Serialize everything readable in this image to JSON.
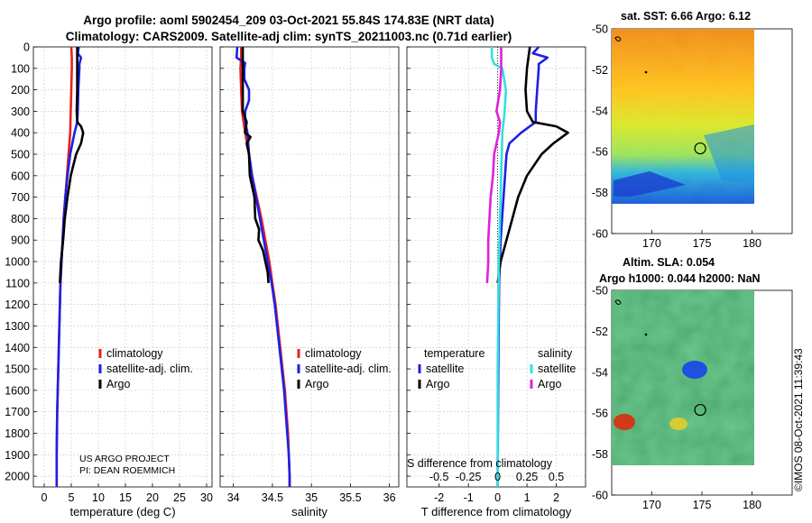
{
  "titles": {
    "line1": "Argo profile: aoml 5902454_209 03-Oct-2021 55.84S 174.83E (NRT data)",
    "line2": "Climatology: CARS2009. Satellite-adj clim: synTS_20211003.nc (0.71d earlier)"
  },
  "credit": "©IMOS 08-Oct-2021 11:39:43",
  "colors": {
    "climatology": "#e8231e",
    "satellite": "#1f1fe6",
    "argo": "#000000",
    "sat_salinity": "#33e0e0",
    "argo_salinity": "#e020e0"
  },
  "chart_data": [
    {
      "type": "line",
      "name": "temperature-profile",
      "xlabel": "temperature (deg C)",
      "ylabel": "",
      "xlim": [
        -2,
        31
      ],
      "ylim": [
        2050,
        0
      ],
      "xticks": [
        "0",
        "5",
        "10",
        "15",
        "20",
        "25",
        "30"
      ],
      "yticks": [
        "0",
        "100",
        "200",
        "300",
        "400",
        "500",
        "600",
        "700",
        "800",
        "900",
        "1000",
        "1100",
        "1200",
        "1300",
        "1400",
        "1500",
        "1600",
        "1700",
        "1800",
        "1900",
        "2000"
      ],
      "legend": [
        "climatology",
        "satellite-adj. clim.",
        "Argo"
      ],
      "legend_position": "lower-right",
      "annotation": [
        "US ARGO PROJECT",
        "PI: DEAN ROEMMICH"
      ],
      "series": [
        {
          "name": "climatology",
          "color": "#e8231e",
          "points": [
            [
              5,
              0
            ],
            [
              5.1,
              50
            ],
            [
              5.1,
              100
            ],
            [
              5,
              200
            ],
            [
              4.9,
              300
            ],
            [
              4.8,
              400
            ],
            [
              4.5,
              500
            ],
            [
              4.2,
              600
            ],
            [
              3.9,
              700
            ],
            [
              3.6,
              800
            ],
            [
              3.4,
              900
            ],
            [
              3.2,
              1000
            ],
            [
              3.0,
              1100
            ],
            [
              2.9,
              1200
            ],
            [
              2.8,
              1300
            ],
            [
              2.7,
              1400
            ],
            [
              2.6,
              1500
            ],
            [
              2.5,
              1600
            ],
            [
              2.4,
              1700
            ],
            [
              2.35,
              1800
            ],
            [
              2.3,
              1900
            ],
            [
              2.3,
              2000
            ],
            [
              2.3,
              2050
            ]
          ]
        },
        {
          "name": "satellite-adj. clim.",
          "color": "#1f1fe6",
          "points": [
            [
              6.4,
              0
            ],
            [
              6.2,
              30
            ],
            [
              6.8,
              50
            ],
            [
              6.5,
              80
            ],
            [
              6.5,
              100
            ],
            [
              6.3,
              200
            ],
            [
              6.2,
              300
            ],
            [
              6.1,
              350
            ],
            [
              5.6,
              400
            ],
            [
              4.8,
              500
            ],
            [
              4.3,
              600
            ],
            [
              3.9,
              700
            ],
            [
              3.6,
              800
            ],
            [
              3.4,
              900
            ],
            [
              3.2,
              1000
            ],
            [
              3.0,
              1100
            ],
            [
              2.9,
              1200
            ],
            [
              2.8,
              1300
            ],
            [
              2.7,
              1400
            ],
            [
              2.6,
              1500
            ],
            [
              2.5,
              1600
            ],
            [
              2.4,
              1700
            ],
            [
              2.35,
              1800
            ],
            [
              2.3,
              1900
            ],
            [
              2.3,
              2000
            ],
            [
              2.3,
              2050
            ]
          ]
        },
        {
          "name": "Argo",
          "color": "#000000",
          "points": [
            [
              6.1,
              0
            ],
            [
              6.1,
              50
            ],
            [
              6.1,
              100
            ],
            [
              6.1,
              200
            ],
            [
              6.0,
              300
            ],
            [
              6.1,
              350
            ],
            [
              6.8,
              370
            ],
            [
              7.2,
              400
            ],
            [
              6.8,
              450
            ],
            [
              5.9,
              500
            ],
            [
              4.9,
              600
            ],
            [
              4.3,
              700
            ],
            [
              3.8,
              800
            ],
            [
              3.5,
              900
            ],
            [
              3.1,
              1000
            ],
            [
              2.9,
              1100
            ]
          ]
        }
      ]
    },
    {
      "type": "line",
      "name": "salinity-profile",
      "xlabel": "salinity",
      "xlim": [
        33.83,
        36.12
      ],
      "ylim": [
        2050,
        0
      ],
      "xticks": [
        "34",
        "34.5",
        "35",
        "35.5",
        "36"
      ],
      "legend": [
        "climatology",
        "satellite-adj. clim.",
        "Argo"
      ],
      "legend_position": "lower-right",
      "series": [
        {
          "name": "climatology",
          "color": "#e8231e",
          "points": [
            [
              34.1,
              0
            ],
            [
              34.1,
              50
            ],
            [
              34.09,
              100
            ],
            [
              34.1,
              200
            ],
            [
              34.11,
              300
            ],
            [
              34.15,
              400
            ],
            [
              34.2,
              500
            ],
            [
              34.24,
              600
            ],
            [
              34.3,
              700
            ],
            [
              34.36,
              800
            ],
            [
              34.41,
              900
            ],
            [
              34.46,
              1000
            ],
            [
              34.5,
              1100
            ],
            [
              34.54,
              1200
            ],
            [
              34.57,
              1300
            ],
            [
              34.6,
              1400
            ],
            [
              34.63,
              1500
            ],
            [
              34.66,
              1600
            ],
            [
              34.68,
              1700
            ],
            [
              34.7,
              1800
            ],
            [
              34.71,
              1900
            ],
            [
              34.72,
              2000
            ],
            [
              34.72,
              2050
            ]
          ]
        },
        {
          "name": "satellite-adj. clim.",
          "color": "#1f1fe6",
          "points": [
            [
              34.05,
              0
            ],
            [
              34.04,
              50
            ],
            [
              34.15,
              75
            ],
            [
              34.14,
              100
            ],
            [
              34.14,
              150
            ],
            [
              34.2,
              200
            ],
            [
              34.2,
              250
            ],
            [
              34.15,
              300
            ],
            [
              34.15,
              350
            ],
            [
              34.18,
              400
            ],
            [
              34.2,
              500
            ],
            [
              34.24,
              600
            ],
            [
              34.29,
              700
            ],
            [
              34.34,
              800
            ],
            [
              34.39,
              900
            ],
            [
              34.44,
              1000
            ],
            [
              34.49,
              1100
            ],
            [
              34.53,
              1200
            ],
            [
              34.56,
              1300
            ],
            [
              34.59,
              1400
            ],
            [
              34.62,
              1500
            ],
            [
              34.65,
              1600
            ],
            [
              34.67,
              1700
            ],
            [
              34.69,
              1800
            ],
            [
              34.71,
              1900
            ],
            [
              34.72,
              2000
            ],
            [
              34.72,
              2050
            ]
          ]
        },
        {
          "name": "Argo",
          "color": "#000000",
          "points": [
            [
              34.12,
              0
            ],
            [
              34.12,
              100
            ],
            [
              34.12,
              200
            ],
            [
              34.12,
              300
            ],
            [
              34.17,
              350
            ],
            [
              34.15,
              400
            ],
            [
              34.22,
              420
            ],
            [
              34.17,
              450
            ],
            [
              34.2,
              500
            ],
            [
              34.21,
              600
            ],
            [
              34.27,
              700
            ],
            [
              34.28,
              800
            ],
            [
              34.33,
              850
            ],
            [
              34.32,
              900
            ],
            [
              34.38,
              950
            ],
            [
              34.41,
              1000
            ],
            [
              34.44,
              1050
            ],
            [
              34.45,
              1100
            ]
          ]
        }
      ]
    },
    {
      "type": "line",
      "name": "difference-profile",
      "xlabel": "T difference from climatology",
      "xlabel2": "S difference from climatology",
      "xlim": [
        -3.1,
        3.0
      ],
      "xlim_salinity": [
        -0.775,
        0.75
      ],
      "ylim": [
        2050,
        0
      ],
      "xticks": [
        "-2",
        "-1",
        "0",
        "1",
        "2"
      ],
      "xticks_salinity": [
        "-0.5",
        "-0.25",
        "0",
        "0.25",
        "0.5"
      ],
      "legend_temperature_title": "temperature",
      "legend_salinity_title": "salinity",
      "legend_temperature": [
        "satellite",
        "Argo"
      ],
      "legend_salinity": [
        "satellite",
        "Argo"
      ],
      "series": [
        {
          "name": "temperature satellite",
          "color": "#1f1fe6",
          "units": "degC",
          "points": [
            [
              1.4,
              0
            ],
            [
              1.2,
              30
            ],
            [
              1.7,
              50
            ],
            [
              1.4,
              80
            ],
            [
              1.4,
              100
            ],
            [
              1.35,
              200
            ],
            [
              1.3,
              300
            ],
            [
              1.3,
              350
            ],
            [
              0.8,
              400
            ],
            [
              0.4,
              450
            ],
            [
              0.3,
              500
            ],
            [
              0.2,
              700
            ],
            [
              0.1,
              900
            ],
            [
              0.05,
              1100
            ],
            [
              0.02,
              1500
            ],
            [
              0,
              2000
            ],
            [
              0,
              2050
            ]
          ]
        },
        {
          "name": "temperature Argo",
          "color": "#000000",
          "units": "degC",
          "points": [
            [
              1.1,
              0
            ],
            [
              1.0,
              100
            ],
            [
              0.95,
              200
            ],
            [
              1.0,
              300
            ],
            [
              1.2,
              350
            ],
            [
              2.0,
              370
            ],
            [
              2.4,
              400
            ],
            [
              1.9,
              450
            ],
            [
              1.5,
              500
            ],
            [
              1.0,
              600
            ],
            [
              0.7,
              700
            ],
            [
              0.5,
              800
            ],
            [
              0.3,
              900
            ],
            [
              0.1,
              1000
            ],
            [
              0,
              1100
            ]
          ]
        },
        {
          "name": "salinity satellite",
          "color": "#33e0e0",
          "units": "psu",
          "points": [
            [
              -0.05,
              0
            ],
            [
              -0.05,
              50
            ],
            [
              -0.03,
              80
            ],
            [
              0.04,
              100
            ],
            [
              0.07,
              200
            ],
            [
              0.06,
              300
            ],
            [
              0.04,
              400
            ],
            [
              0.03,
              600
            ],
            [
              0.02,
              800
            ],
            [
              0.01,
              1000
            ],
            [
              0,
              1500
            ],
            [
              0,
              2000
            ],
            [
              0,
              2050
            ]
          ]
        },
        {
          "name": "salinity Argo",
          "color": "#e020e0",
          "units": "psu",
          "points": [
            [
              0.03,
              0
            ],
            [
              0.03,
              100
            ],
            [
              0.02,
              200
            ],
            [
              -0.01,
              300
            ],
            [
              0.02,
              350
            ],
            [
              0.01,
              400
            ],
            [
              -0.01,
              450
            ],
            [
              -0.03,
              500
            ],
            [
              -0.04,
              600
            ],
            [
              -0.06,
              700
            ],
            [
              -0.07,
              800
            ],
            [
              -0.08,
              900
            ],
            [
              -0.08,
              1000
            ],
            [
              -0.09,
              1100
            ]
          ]
        }
      ]
    },
    {
      "type": "heatmap",
      "name": "sst-map",
      "title": "sat. SST: 6.66 Argo: 6.12",
      "xticks": [
        "170",
        "175",
        "180"
      ],
      "yticks": [
        "-50",
        "-52",
        "-54",
        "-56",
        "-58",
        "-60"
      ],
      "xlim": [
        166,
        184
      ],
      "ylim": [
        -60,
        -50
      ],
      "float_position": [
        174.83,
        -55.84
      ]
    },
    {
      "type": "heatmap",
      "name": "sla-map",
      "title1": "Altim. SLA: 0.054",
      "title2": "Argo h1000: 0.044 h2000: NaN",
      "xticks": [
        "170",
        "175",
        "180"
      ],
      "yticks": [
        "-50",
        "-52",
        "-54",
        "-56",
        "-58",
        "-60"
      ],
      "xlim": [
        166,
        184
      ],
      "ylim": [
        -60,
        -50
      ],
      "float_position": [
        174.83,
        -55.84
      ]
    }
  ]
}
